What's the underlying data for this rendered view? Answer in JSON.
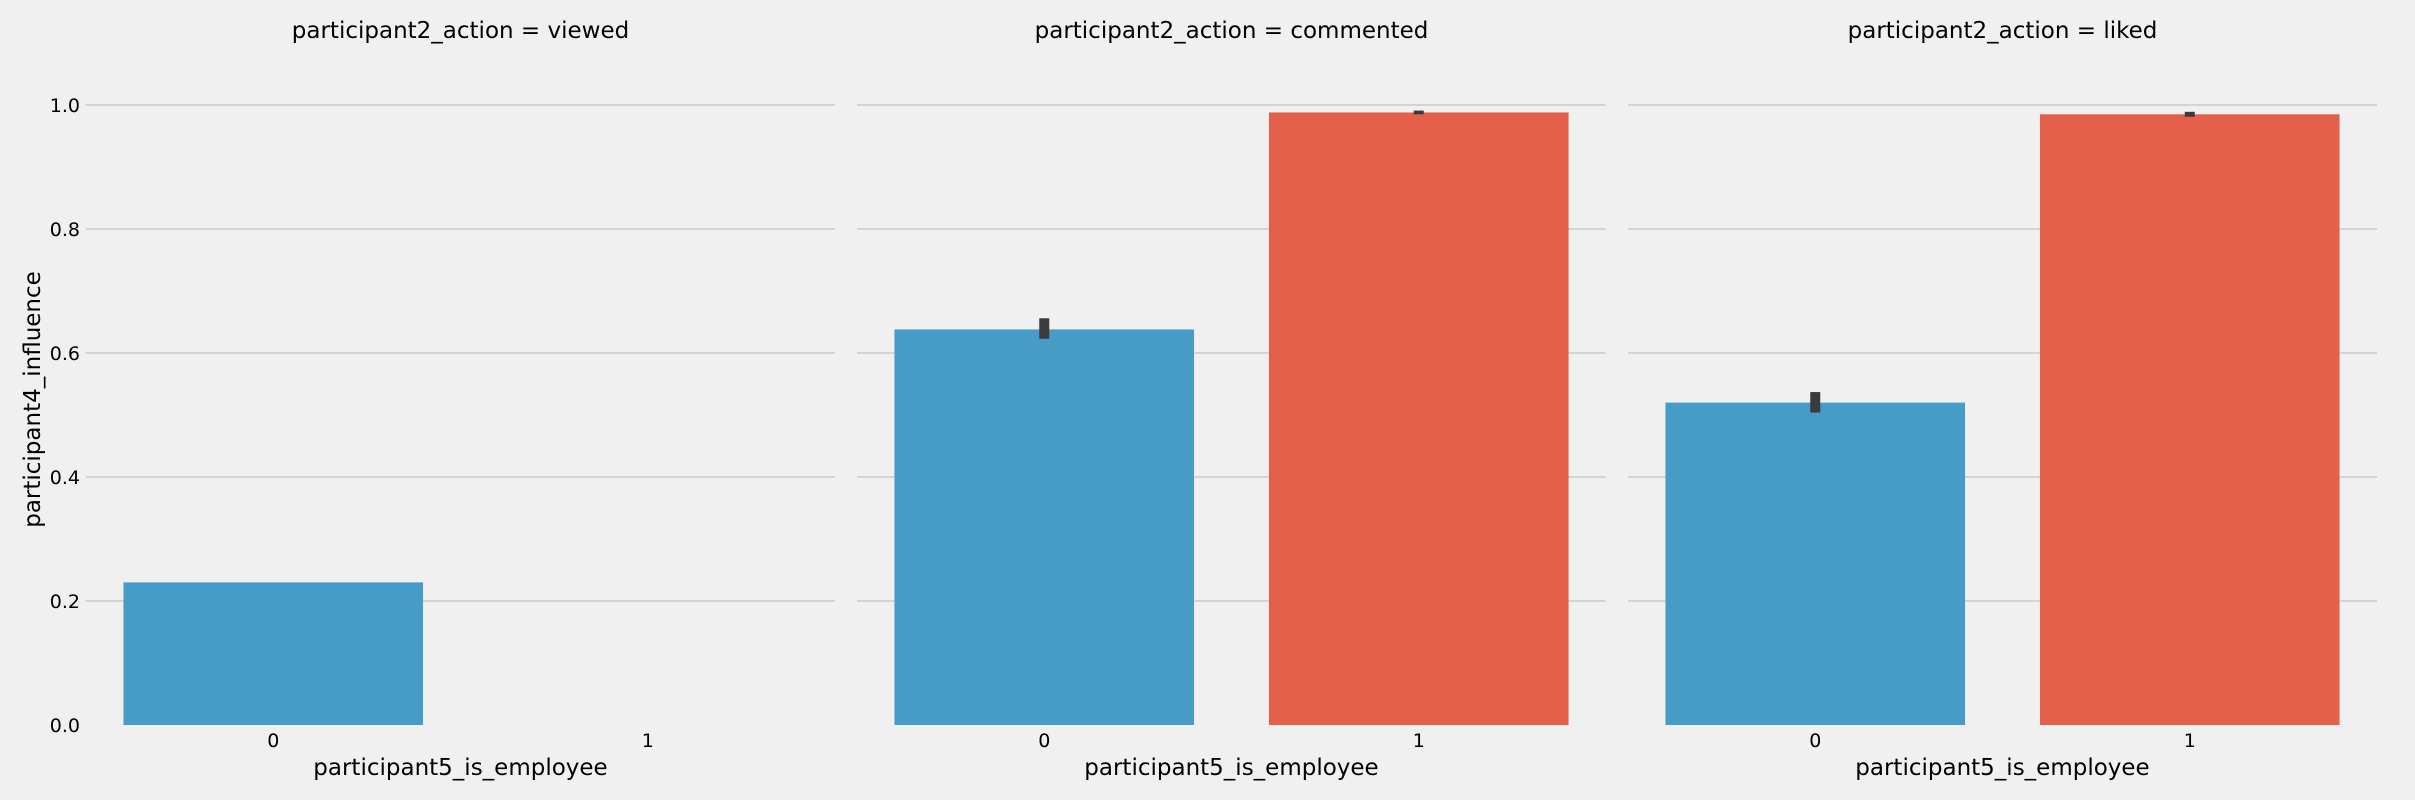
{
  "chart_data": {
    "type": "bar",
    "ylabel": "participant4_influence",
    "ylim": [
      0,
      1.05
    ],
    "yticks": [
      "0.0",
      "0.2",
      "0.4",
      "0.6",
      "0.8",
      "1.0"
    ],
    "grid": "horizontal",
    "colors": {
      "0": "#479bc7",
      "1": "#e5604a",
      "errorbar": "#3b3b3b"
    },
    "facets": [
      {
        "title": "participant2_action = viewed",
        "xlabel": "participant5_is_employee",
        "categories": [
          "0",
          "1"
        ],
        "values": [
          0.23,
          null
        ],
        "error": [
          null,
          null
        ]
      },
      {
        "title": "participant2_action = commented",
        "xlabel": "participant5_is_employee",
        "categories": [
          "0",
          "1"
        ],
        "values": [
          0.638,
          0.988
        ],
        "error": [
          [
            0.623,
            0.656
          ],
          [
            0.985,
            0.991
          ]
        ]
      },
      {
        "title": "participant2_action = liked",
        "xlabel": "participant5_is_employee",
        "categories": [
          "0",
          "1"
        ],
        "values": [
          0.52,
          0.985
        ],
        "error": [
          [
            0.504,
            0.537
          ],
          [
            0.981,
            0.989
          ]
        ]
      }
    ]
  }
}
